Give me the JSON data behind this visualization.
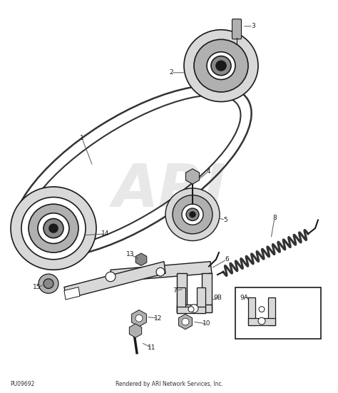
{
  "bg_color": "#ffffff",
  "watermark": "ARI",
  "part_number": "PU09692",
  "footer": "Rendered by ARI Network Services, Inc.",
  "dark": "#1a1a1a",
  "gray1": "#d8d8d8",
  "gray2": "#b0b0b0",
  "gray3": "#888888",
  "gray4": "#555555",
  "line_color": "#333333"
}
